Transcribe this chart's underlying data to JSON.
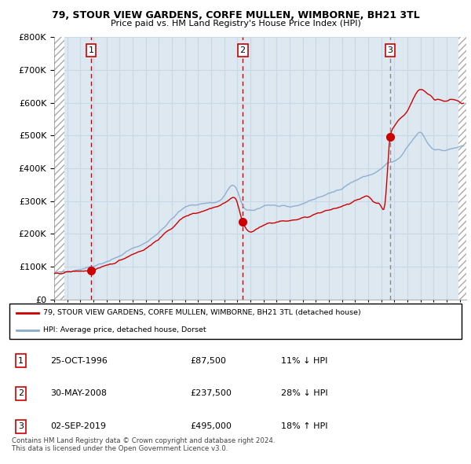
{
  "title": "79, STOUR VIEW GARDENS, CORFE MULLEN, WIMBORNE, BH21 3TL",
  "subtitle": "Price paid vs. HM Land Registry's House Price Index (HPI)",
  "ylim": [
    0,
    800000
  ],
  "yticks": [
    0,
    100000,
    200000,
    300000,
    400000,
    500000,
    600000,
    700000,
    800000
  ],
  "xlim_start": 1994.0,
  "xlim_end": 2025.5,
  "hatch_left_end": 1994.75,
  "hatch_right_start": 2024.92,
  "sales": [
    {
      "year": 1996.82,
      "price": 87500,
      "label": "1"
    },
    {
      "year": 2008.41,
      "price": 237500,
      "label": "2"
    },
    {
      "year": 2019.67,
      "price": 495000,
      "label": "3"
    }
  ],
  "sale_vlines": [
    1996.82,
    2008.41,
    2019.67
  ],
  "red_color": "#cc0000",
  "blue_color": "#88aacc",
  "bg_color": "#dde8f0",
  "legend_line1": "79, STOUR VIEW GARDENS, CORFE MULLEN, WIMBORNE, BH21 3TL (detached house)",
  "legend_line2": "HPI: Average price, detached house, Dorset",
  "table_rows": [
    {
      "num": "1",
      "date": "25-OCT-1996",
      "price": "£87,500",
      "hpi": "11% ↓ HPI"
    },
    {
      "num": "2",
      "date": "30-MAY-2008",
      "price": "£237,500",
      "hpi": "28% ↓ HPI"
    },
    {
      "num": "3",
      "date": "02-SEP-2019",
      "price": "£495,000",
      "hpi": "18% ↑ HPI"
    }
  ],
  "footer": "Contains HM Land Registry data © Crown copyright and database right 2024.\nThis data is licensed under the Open Government Licence v3.0.",
  "grid_color": "#c8d8e8"
}
